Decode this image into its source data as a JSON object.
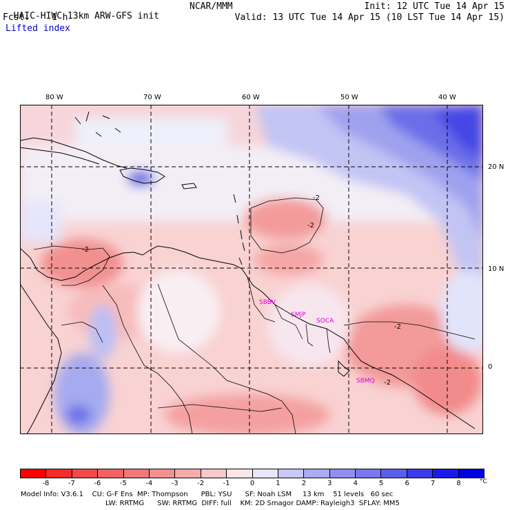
{
  "header": {
    "model_title": "HAIC-HIWC 13km ARW-GFS init",
    "org": "NCAR/MMM",
    "init_time": "Init: 12 UTC Tue 14 Apr 15",
    "fcst_label": "Fcst:",
    "fcst_value": "1 h",
    "valid_time": "Valid: 13 UTC Tue 14 Apr 15 (10 LST Tue 14 Apr 15)",
    "field_name": "Lifted index"
  },
  "map": {
    "lon_labels": [
      "80 W",
      "70 W",
      "60 W",
      "50 W",
      "40 W"
    ],
    "lat_labels": [
      "20 N",
      "10 N",
      "0"
    ],
    "stations": [
      "SBBV",
      "SMJP",
      "SOCA",
      "SBMQ"
    ],
    "contour_labels": [
      "-2",
      "-2",
      "-2",
      "-2",
      "-2"
    ]
  },
  "colorbar": {
    "tick_labels": [
      "-8",
      "-7",
      "-6",
      "-5",
      "-4",
      "-3",
      "-2",
      "-1",
      "0",
      "1",
      "2",
      "3",
      "4",
      "5",
      "6",
      "7",
      "8"
    ],
    "unit": "°C",
    "colors": [
      "#ff0000",
      "#f82a2a",
      "#f44848",
      "#f26262",
      "#f17878",
      "#f39090",
      "#f6abab",
      "#f9c8c8",
      "#fde6e6",
      "#e6e6fd",
      "#c8c8f9",
      "#ababf6",
      "#9090f3",
      "#7878f1",
      "#5c5ced",
      "#3b3bed",
      "#1a1aeb",
      "#0000e6"
    ]
  },
  "footer": {
    "line1": "Model Info: V3.6.1    CU: G-F Ens  MP: Thompson      PBL: YSU      SF: Noah LSM     13 km    51 levels   60 sec",
    "line2": "LW: RRTMG      SW: RRTMG  DIFF: full    KM: 2D Smagor DAMP: Rayleigh3  SFLAY: MM5"
  }
}
